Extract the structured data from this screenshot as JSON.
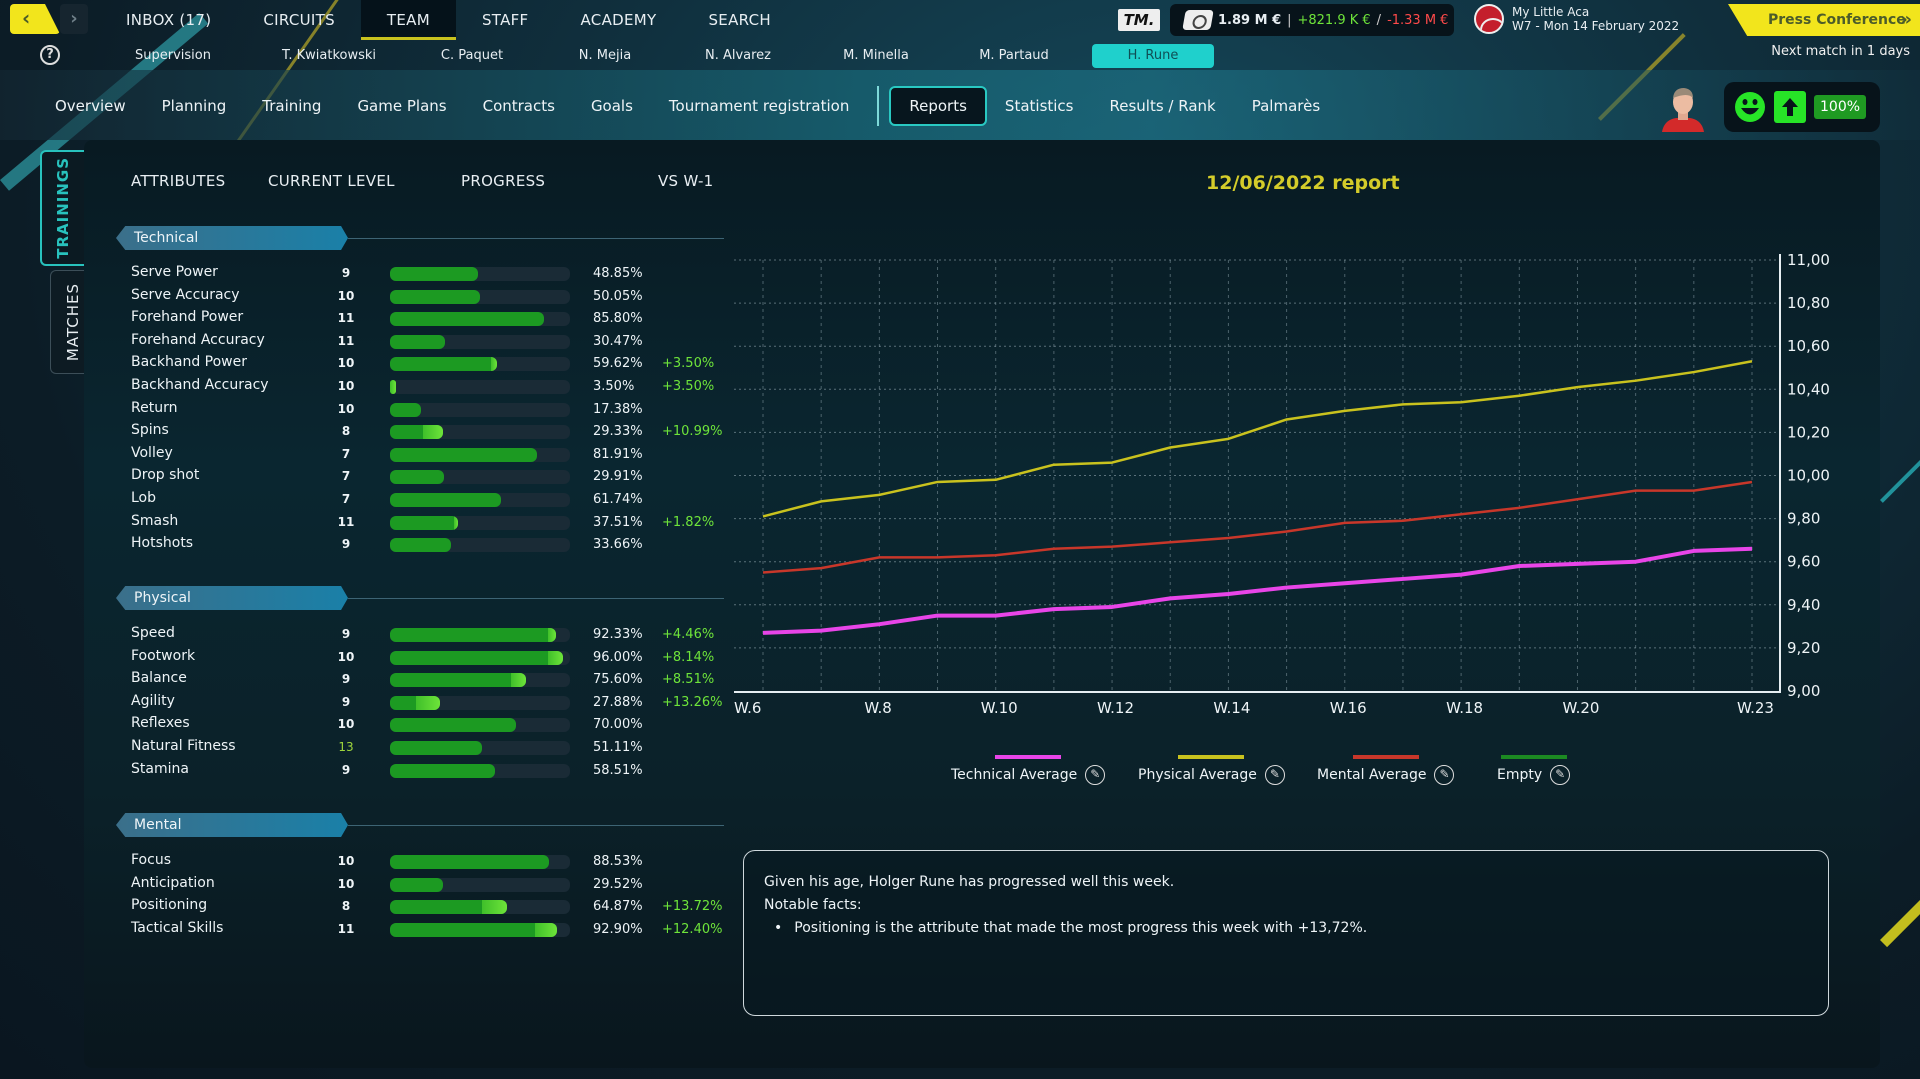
{
  "topbar": {
    "back_label": "‹",
    "forward_label": "›",
    "nav": [
      {
        "label": "INBOX (17)",
        "active": false
      },
      {
        "label": "CIRCUITS",
        "active": false
      },
      {
        "label": "TEAM",
        "active": true
      },
      {
        "label": "STAFF",
        "active": false
      },
      {
        "label": "ACADEMY",
        "active": false
      },
      {
        "label": "SEARCH",
        "active": false
      }
    ],
    "logo_text": "TM.",
    "finances": {
      "balance": "1.89 M €",
      "separator": "|",
      "income": "+821.9 K €",
      "slash": "/",
      "expenses": "-1.33 M €"
    },
    "academy": {
      "name": "My Little Aca",
      "date": "W7 - Mon 14 February 2022"
    },
    "press_conference_label": "Press Conference",
    "press_chevron": "»",
    "next_match": "Next match in 1 days"
  },
  "help_icon": "?",
  "players": [
    {
      "label": "Supervision",
      "active": false
    },
    {
      "label": "T. Kwiatkowski",
      "active": false
    },
    {
      "label": "C. Paquet",
      "active": false
    },
    {
      "label": "N. Mejia",
      "active": false
    },
    {
      "label": "N. Alvarez",
      "active": false
    },
    {
      "label": "M. Minella",
      "active": false
    },
    {
      "label": "M. Partaud",
      "active": false
    },
    {
      "label": "H. Rune",
      "active": true
    }
  ],
  "subnav": [
    {
      "label": "Overview",
      "active": false
    },
    {
      "label": "Planning",
      "active": false
    },
    {
      "label": "Training",
      "active": false
    },
    {
      "label": "Game Plans",
      "active": false
    },
    {
      "label": "Contracts",
      "active": false
    },
    {
      "label": "Goals",
      "active": false
    },
    {
      "label": "Tournament registration",
      "active": false
    },
    {
      "label": "Reports",
      "active": true
    },
    {
      "label": "Statistics",
      "active": false
    },
    {
      "label": "Results / Rank",
      "active": false
    },
    {
      "label": "Palmarès",
      "active": false
    }
  ],
  "player_status": {
    "mood": "happy",
    "trend": "up",
    "fitness": "100%"
  },
  "side_tabs": {
    "trainings": "TRAININGS",
    "matches": "MATCHES"
  },
  "table": {
    "headers": {
      "attributes": "ATTRIBUTES",
      "current_level": "CURRENT LEVEL",
      "progress": "PROGRESS",
      "vs": "VS W-1"
    },
    "sections": [
      {
        "title": "Technical",
        "rows": [
          {
            "name": "Serve Power",
            "level": "9",
            "progress": 48.85,
            "progress_label": "48.85%",
            "delta": ""
          },
          {
            "name": "Serve Accuracy",
            "level": "10",
            "progress": 50.05,
            "progress_label": "50.05%",
            "delta": ""
          },
          {
            "name": "Forehand Power",
            "level": "11",
            "progress": 85.8,
            "progress_label": "85.80%",
            "delta": ""
          },
          {
            "name": "Forehand Accuracy",
            "level": "11",
            "progress": 30.47,
            "progress_label": "30.47%",
            "delta": ""
          },
          {
            "name": "Backhand Power",
            "level": "10",
            "progress": 59.62,
            "progress_label": "59.62%",
            "delta": "+3.50%",
            "gain": 3.5
          },
          {
            "name": "Backhand Accuracy",
            "level": "10",
            "progress": 3.5,
            "progress_label": "3.50%",
            "delta": "+3.50%",
            "gain": 3.5
          },
          {
            "name": "Return",
            "level": "10",
            "progress": 17.38,
            "progress_label": "17.38%",
            "delta": ""
          },
          {
            "name": "Spins",
            "level": "8",
            "progress": 29.33,
            "progress_label": "29.33%",
            "delta": "+10.99%",
            "gain": 10.99
          },
          {
            "name": "Volley",
            "level": "7",
            "progress": 81.91,
            "progress_label": "81.91%",
            "delta": ""
          },
          {
            "name": "Drop shot",
            "level": "7",
            "progress": 29.91,
            "progress_label": "29.91%",
            "delta": ""
          },
          {
            "name": "Lob",
            "level": "7",
            "progress": 61.74,
            "progress_label": "61.74%",
            "delta": ""
          },
          {
            "name": "Smash",
            "level": "11",
            "progress": 37.51,
            "progress_label": "37.51%",
            "delta": "+1.82%",
            "gain": 1.82
          },
          {
            "name": "Hotshots",
            "level": "9",
            "progress": 33.66,
            "progress_label": "33.66%",
            "delta": ""
          }
        ]
      },
      {
        "title": "Physical",
        "rows": [
          {
            "name": "Speed",
            "level": "9",
            "progress": 92.33,
            "progress_label": "92.33%",
            "delta": "+4.46%",
            "gain": 4.46
          },
          {
            "name": "Footwork",
            "level": "10",
            "progress": 96.0,
            "progress_label": "96.00%",
            "delta": "+8.14%",
            "gain": 8.14
          },
          {
            "name": "Balance",
            "level": "9",
            "progress": 75.6,
            "progress_label": "75.60%",
            "delta": "+8.51%",
            "gain": 8.51
          },
          {
            "name": "Agility",
            "level": "9",
            "progress": 27.88,
            "progress_label": "27.88%",
            "delta": "+13.26%",
            "gain": 13.26
          },
          {
            "name": "Reflexes",
            "level": "10",
            "progress": 70.0,
            "progress_label": "70.00%",
            "delta": ""
          },
          {
            "name": "Natural Fitness",
            "level": "13",
            "progress": 51.11,
            "progress_label": "51.11%",
            "delta": "",
            "highlight": true
          },
          {
            "name": "Stamina",
            "level": "9",
            "progress": 58.51,
            "progress_label": "58.51%",
            "delta": ""
          }
        ]
      },
      {
        "title": "Mental",
        "rows": [
          {
            "name": "Focus",
            "level": "10",
            "progress": 88.53,
            "progress_label": "88.53%",
            "delta": ""
          },
          {
            "name": "Anticipation",
            "level": "10",
            "progress": 29.52,
            "progress_label": "29.52%",
            "delta": ""
          },
          {
            "name": "Positioning",
            "level": "8",
            "progress": 64.87,
            "progress_label": "64.87%",
            "delta": "+13.72%",
            "gain": 13.72
          },
          {
            "name": "Tactical Skills",
            "level": "11",
            "progress": 92.9,
            "progress_label": "92.90%",
            "delta": "+12.40%",
            "gain": 12.4
          }
        ]
      }
    ]
  },
  "report": {
    "title": "12/06/2022 report",
    "legend": [
      {
        "label": "Technical Average",
        "color": "#e845e8",
        "icon": "✎"
      },
      {
        "label": "Physical Average",
        "color": "#c9c21e",
        "icon": "✎"
      },
      {
        "label": "Mental Average",
        "color": "#c8372a",
        "icon": "✎"
      },
      {
        "label": "Empty",
        "color": "#1c8a22",
        "icon": "✎"
      }
    ],
    "notes": {
      "line1": "Given his age, Holger Rune has progressed well this week.",
      "line2": "Notable facts:",
      "bullet1": "Positioning is the attribute that made the most progress this week with +13,72%."
    }
  },
  "chart_data": {
    "type": "line",
    "title": "12/06/2022 report",
    "xlabel": "",
    "ylabel": "",
    "x": [
      "W.6",
      "W.7",
      "W.8",
      "W.9",
      "W.10",
      "W.11",
      "W.12",
      "W.13",
      "W.14",
      "W.15",
      "W.16",
      "W.17",
      "W.18",
      "W.19",
      "W.20",
      "W.21",
      "W.22",
      "W.23"
    ],
    "x_tick_labels": [
      "W.6",
      "W.8",
      "W.10",
      "W.12",
      "W.14",
      "W.16",
      "W.18",
      "W.20",
      "W.23"
    ],
    "y_tick_labels": [
      "9,00",
      "9,20",
      "9,40",
      "9,60",
      "9,80",
      "10,00",
      "10,20",
      "10,40",
      "10,60",
      "10,80",
      "11,00"
    ],
    "ylim": [
      9.0,
      11.0
    ],
    "grid": true,
    "legend_position": "bottom",
    "series": [
      {
        "name": "Technical Average",
        "color": "#e845e8",
        "values": [
          9.27,
          9.28,
          9.31,
          9.35,
          9.35,
          9.38,
          9.39,
          9.43,
          9.45,
          9.48,
          9.5,
          9.52,
          9.54,
          9.58,
          9.59,
          9.6,
          9.65,
          9.66
        ]
      },
      {
        "name": "Physical Average",
        "color": "#c9c21e",
        "values": [
          9.81,
          9.88,
          9.91,
          9.97,
          9.98,
          10.05,
          10.06,
          10.13,
          10.17,
          10.26,
          10.3,
          10.33,
          10.34,
          10.37,
          10.41,
          10.44,
          10.48,
          10.53
        ]
      },
      {
        "name": "Mental Average",
        "color": "#c8372a",
        "values": [
          9.55,
          9.57,
          9.62,
          9.62,
          9.63,
          9.66,
          9.67,
          9.69,
          9.71,
          9.74,
          9.78,
          9.79,
          9.82,
          9.85,
          9.89,
          9.93,
          9.93,
          9.97
        ]
      },
      {
        "name": "Empty",
        "color": "#1c8a22",
        "values": []
      }
    ]
  }
}
